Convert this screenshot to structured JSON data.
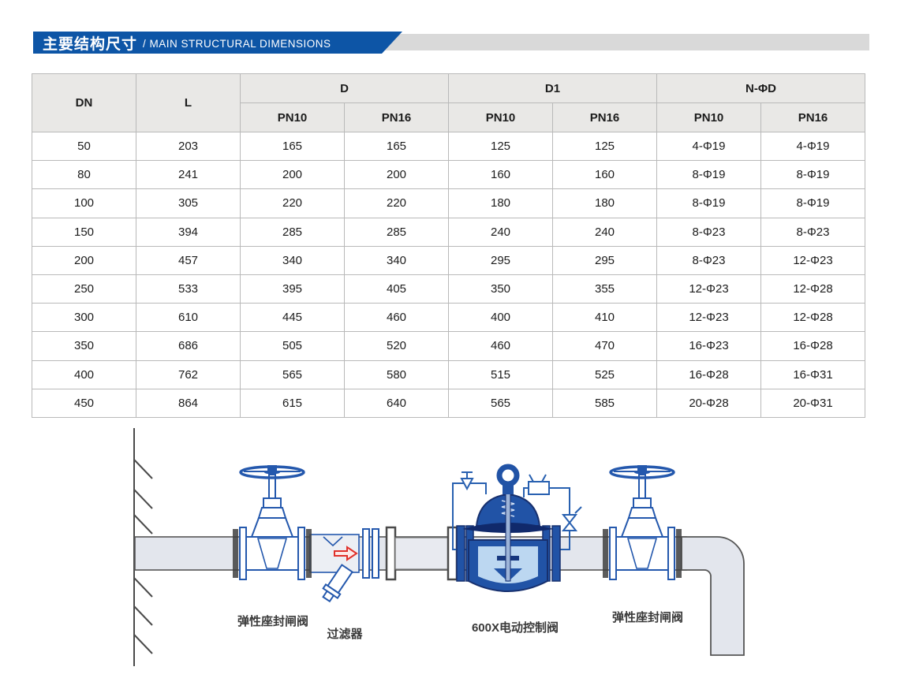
{
  "header": {
    "title_zh": "主要结构尺寸",
    "title_en": "/ MAIN STRUCTURAL DIMENSIONS",
    "bar_color": "#0d55a6",
    "tail_color": "#d9d9d9"
  },
  "table": {
    "headers": {
      "dn": "DN",
      "l": "L",
      "d": "D",
      "d1": "D1",
      "nphid": "N-ΦD"
    },
    "subheaders": [
      "PN10",
      "PN16",
      "PN10",
      "PN16",
      "PN10",
      "PN16"
    ],
    "rows": [
      [
        "50",
        "203",
        "165",
        "165",
        "125",
        "125",
        "4-Φ19",
        "4-Φ19"
      ],
      [
        "80",
        "241",
        "200",
        "200",
        "160",
        "160",
        "8-Φ19",
        "8-Φ19"
      ],
      [
        "100",
        "305",
        "220",
        "220",
        "180",
        "180",
        "8-Φ19",
        "8-Φ19"
      ],
      [
        "150",
        "394",
        "285",
        "285",
        "240",
        "240",
        "8-Φ23",
        "8-Φ23"
      ],
      [
        "200",
        "457",
        "340",
        "340",
        "295",
        "295",
        "8-Φ23",
        "12-Φ23"
      ],
      [
        "250",
        "533",
        "395",
        "405",
        "350",
        "355",
        "12-Φ23",
        "12-Φ28"
      ],
      [
        "300",
        "610",
        "445",
        "460",
        "400",
        "410",
        "12-Φ23",
        "12-Φ28"
      ],
      [
        "350",
        "686",
        "505",
        "520",
        "460",
        "470",
        "16-Φ23",
        "16-Φ28"
      ],
      [
        "400",
        "762",
        "565",
        "580",
        "515",
        "525",
        "16-Φ28",
        "16-Φ31"
      ],
      [
        "450",
        "864",
        "615",
        "640",
        "565",
        "585",
        "20-Φ28",
        "20-Φ31"
      ]
    ]
  },
  "diagram": {
    "labels": {
      "gate_valve_left": "弹性座封闸阀",
      "strainer": "过滤器",
      "control_valve": "600X电动控制阀",
      "gate_valve_right": "弹性座封闸阀"
    },
    "colors": {
      "line_blue": "#2458ad",
      "valve_fill": "#2153a6",
      "pipe_fill": "#e3e6ed",
      "arrow_red": "#e0312b"
    }
  }
}
